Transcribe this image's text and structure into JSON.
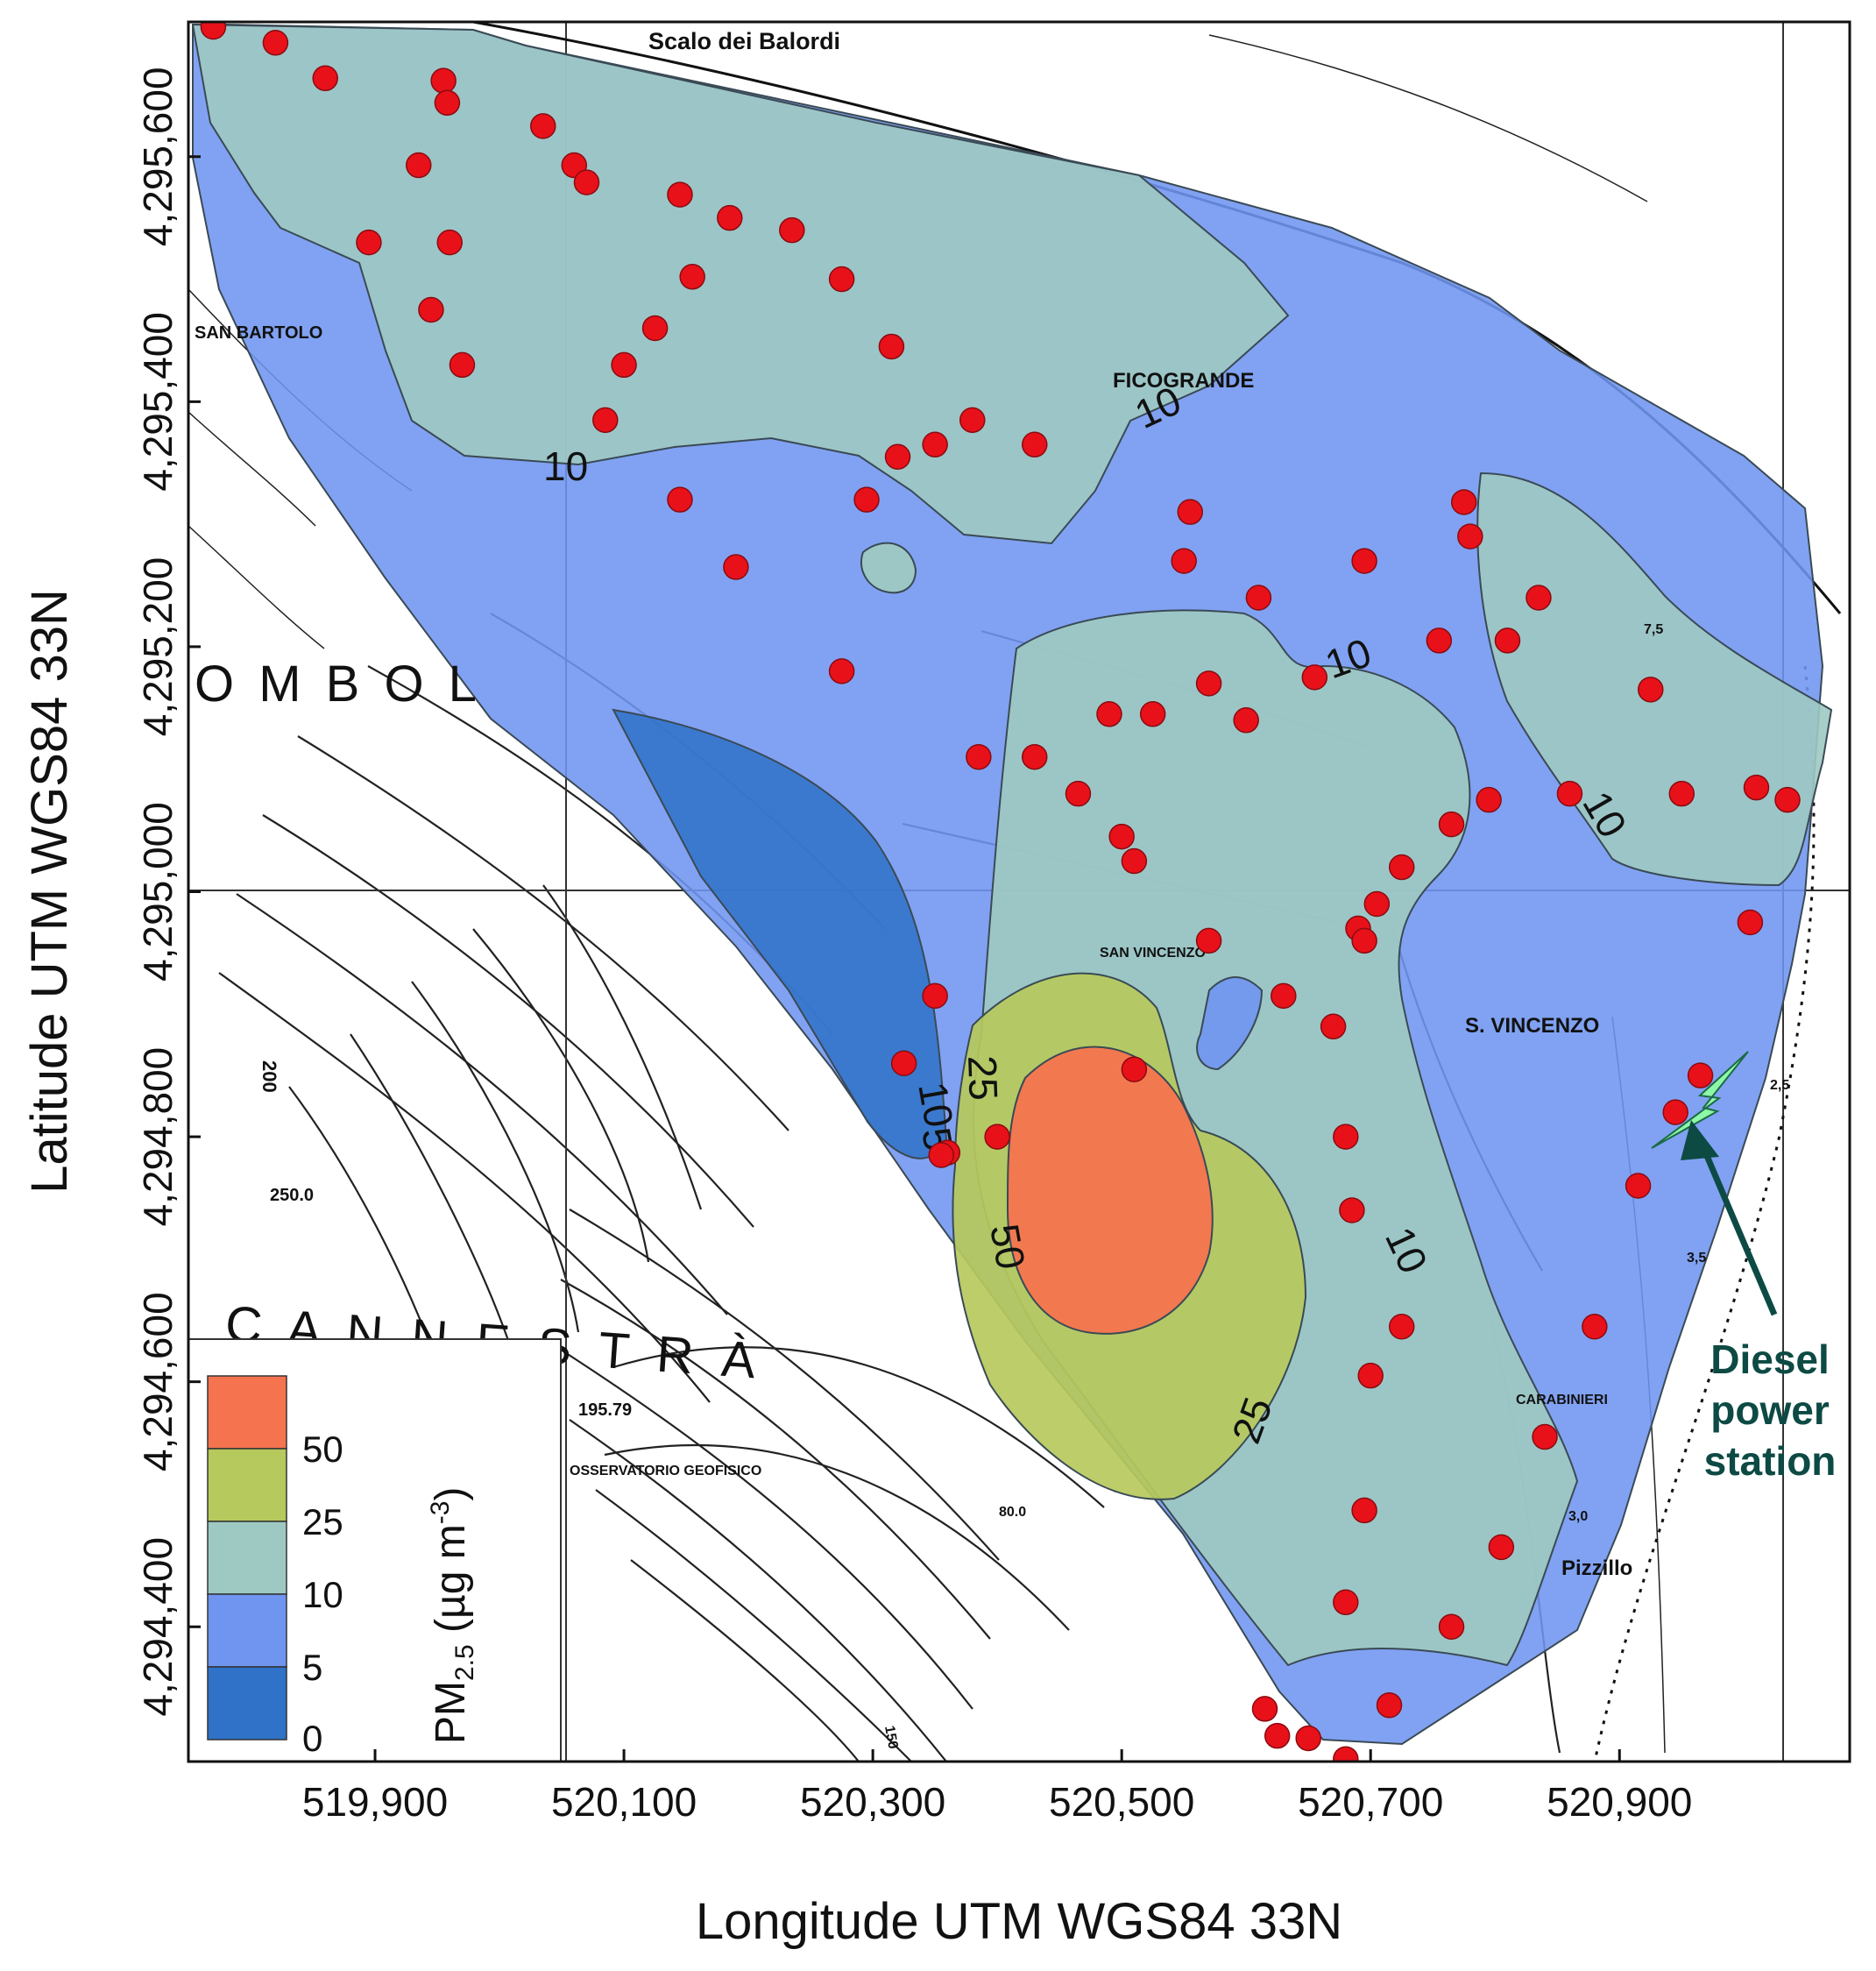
{
  "axes": {
    "xlabel": "Longitude UTM WGS84 33N",
    "ylabel": "Latitude UTM WGS84 33N",
    "x_ticks": [
      {
        "value": 519900,
        "label": "519,900"
      },
      {
        "value": 520100,
        "label": "520,100"
      },
      {
        "value": 520300,
        "label": "520,300"
      },
      {
        "value": 520500,
        "label": "520,500"
      },
      {
        "value": 520700,
        "label": "520,700"
      },
      {
        "value": 520900,
        "label": "520,900"
      }
    ],
    "y_ticks": [
      {
        "value": 4295600,
        "label": "4,295,600"
      },
      {
        "value": 4295400,
        "label": "4,295,400"
      },
      {
        "value": 4295200,
        "label": "4,295,200"
      },
      {
        "value": 4295000,
        "label": "4,295,000"
      },
      {
        "value": 4294800,
        "label": "4,294,800"
      },
      {
        "value": 4294600,
        "label": "4,294,600"
      },
      {
        "value": 4294400,
        "label": "4,294,400"
      }
    ],
    "xlim": [
      519750,
      521085
    ],
    "ylim": [
      4294290,
      4295710
    ]
  },
  "legend": {
    "title": "PM",
    "title_sub": "2.5",
    "unit_prefix": " (µg m",
    "unit_sup": "-3",
    "unit_suffix": ")",
    "levels": [
      {
        "label": "50",
        "color": "#f5744f"
      },
      {
        "label": "25",
        "color": "#b6c95c"
      },
      {
        "label": "10",
        "color": "#9ec9c2"
      },
      {
        "label": "5",
        "color": "#6f95f0"
      },
      {
        "label": "0",
        "color": "#2f72c8"
      }
    ]
  },
  "map_labels": {
    "scalo": "Scalo dei Balordi",
    "san_bartolo": "SAN BARTOLO",
    "ficogrande": "FICOGRANDE",
    "stromboli": "O M B O L",
    "san_vincenzo_small": "SAN VINCENZO",
    "s_vincenzo": "S. VINCENZO",
    "carabinieri": "CARABINIERI",
    "cannestra": "C A N N E S T R À",
    "osservatorio": "OSSERVATORIO GEOFISICO",
    "pizzillo": "Pizzillo",
    "elev_19579": "195.79",
    "elev_250": "250.0",
    "elev_200": "200",
    "elev_80": "80.0",
    "elev_150": "150",
    "elev_30": "3,0",
    "elev_35": "3,5",
    "elev_25": "2,5",
    "elev_75": "7,5"
  },
  "contour_labels": [
    "10",
    "10",
    "10",
    "10",
    "10",
    "25",
    "50",
    "25",
    "10",
    "5"
  ],
  "annotation": {
    "line1": "Diesel",
    "line2": "power",
    "line3": "station",
    "color": "#0d4a44",
    "icon_color": "#8ef7a8"
  },
  "points": [
    [
      519770,
      4295706
    ],
    [
      519820,
      4295693
    ],
    [
      519860,
      4295664
    ],
    [
      519955,
      4295662
    ],
    [
      519958,
      4295644
    ],
    [
      520035,
      4295625
    ],
    [
      519935,
      4295593
    ],
    [
      520060,
      4295593
    ],
    [
      520070,
      4295579
    ],
    [
      520145,
      4295569
    ],
    [
      520185,
      4295550
    ],
    [
      520235,
      4295540
    ],
    [
      519895,
      4295530
    ],
    [
      519960,
      4295530
    ],
    [
      520275,
      4295500
    ],
    [
      520155,
      4295502
    ],
    [
      519945,
      4295475
    ],
    [
      520125,
      4295460
    ],
    [
      520315,
      4295445
    ],
    [
      519970,
      4295430
    ],
    [
      520100,
      4295430
    ],
    [
      520085,
      4295385
    ],
    [
      520380,
      4295385
    ],
    [
      520350,
      4295365
    ],
    [
      520320,
      4295355
    ],
    [
      520430,
      4295365
    ],
    [
      520145,
      4295320
    ],
    [
      520295,
      4295320
    ],
    [
      520555,
      4295310
    ],
    [
      520775,
      4295318
    ],
    [
      520780,
      4295290
    ],
    [
      520190,
      4295265
    ],
    [
      520550,
      4295270
    ],
    [
      520610,
      4295240
    ],
    [
      520695,
      4295270
    ],
    [
      520835,
      4295240
    ],
    [
      520810,
      4295205
    ],
    [
      520755,
      4295205
    ],
    [
      520925,
      4295165
    ],
    [
      520570,
      4295170
    ],
    [
      520655,
      4295175
    ],
    [
      520275,
      4295180
    ],
    [
      520490,
      4295145
    ],
    [
      520525,
      4295145
    ],
    [
      520600,
      4295140
    ],
    [
      520385,
      4295110
    ],
    [
      520430,
      4295110
    ],
    [
      520465,
      4295080
    ],
    [
      520860,
      4295080
    ],
    [
      520950,
      4295080
    ],
    [
      521010,
      4295085
    ],
    [
      521035,
      4295075
    ],
    [
      520795,
      4295075
    ],
    [
      520765,
      4295055
    ],
    [
      520500,
      4295045
    ],
    [
      520510,
      4295025
    ],
    [
      520725,
      4295020
    ],
    [
      520705,
      4294990
    ],
    [
      520690,
      4294970
    ],
    [
      520695,
      4294960
    ],
    [
      521005,
      4294975
    ],
    [
      520570,
      4294960
    ],
    [
      520350,
      4294915
    ],
    [
      520630,
      4294915
    ],
    [
      520670,
      4294890
    ],
    [
      520325,
      4294860
    ],
    [
      520510,
      4294855
    ],
    [
      520965,
      4294850
    ],
    [
      520945,
      4294820
    ],
    [
      520400,
      4294800
    ],
    [
      520360,
      4294787
    ],
    [
      520355,
      4294785
    ],
    [
      520680,
      4294800
    ],
    [
      520915,
      4294760
    ],
    [
      520685,
      4294740
    ],
    [
      520725,
      4294645
    ],
    [
      520880,
      4294645
    ],
    [
      520700,
      4294605
    ],
    [
      520840,
      4294555
    ],
    [
      520695,
      4294495
    ],
    [
      520805,
      4294465
    ],
    [
      520680,
      4294420
    ],
    [
      520765,
      4294400
    ],
    [
      520615,
      4294333
    ],
    [
      520715,
      4294336
    ],
    [
      520625,
      4294311
    ],
    [
      520650,
      4294309
    ],
    [
      520680,
      4294292
    ]
  ]
}
